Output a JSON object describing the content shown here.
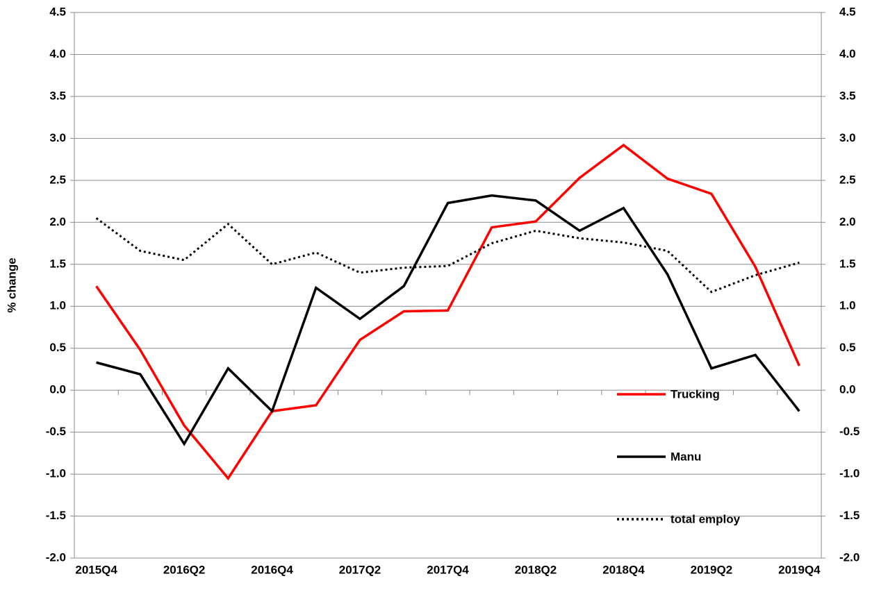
{
  "chart_data": {
    "type": "line",
    "y_label": "% change",
    "categories": [
      "2015Q4",
      null,
      "2016Q2",
      null,
      "2016Q4",
      null,
      "2017Q2",
      null,
      "2017Q4",
      null,
      "2018Q2",
      null,
      "2018Q4",
      null,
      "2019Q2",
      null,
      "2019Q4"
    ],
    "series": [
      {
        "name": "Trucking",
        "color": "#ff0000",
        "style": "solid",
        "values": [
          1.24,
          0.48,
          -0.42,
          -1.05,
          -0.25,
          -0.18,
          0.6,
          0.94,
          0.95,
          1.94,
          2.01,
          2.53,
          2.92,
          2.52,
          2.34,
          1.47,
          0.29
        ]
      },
      {
        "name": "Manu",
        "color": "#000000",
        "style": "solid",
        "values": [
          0.33,
          0.19,
          -0.64,
          0.26,
          -0.25,
          1.22,
          0.85,
          1.24,
          2.23,
          2.32,
          2.26,
          1.9,
          2.17,
          1.38,
          0.26,
          0.42,
          -0.25
        ]
      },
      {
        "name": "total employ",
        "color": "#000000",
        "style": "dotted",
        "values": [
          2.05,
          1.66,
          1.55,
          1.98,
          1.5,
          1.64,
          1.4,
          1.46,
          1.48,
          1.75,
          1.9,
          1.81,
          1.76,
          1.66,
          1.17,
          1.37,
          1.52
        ]
      }
    ],
    "ylim": [
      -2,
      4.5
    ],
    "yticks": [
      {
        "value": -2,
        "label": "-2.0"
      },
      -1.5,
      {
        "value": -1,
        "label": "-1.0"
      },
      -0.5,
      {
        "value": 0,
        "label": "0.0"
      },
      0.5,
      {
        "value": 1,
        "label": "1.0"
      },
      1.5,
      {
        "value": 2,
        "label": "2.0"
      },
      2.5,
      {
        "value": 3,
        "label": "3.0"
      },
      3.5,
      {
        "value": 4,
        "label": "4.0"
      },
      4.5
    ],
    "y2lim": [
      -2,
      4.5
    ],
    "y2ticks": [
      {
        "value": -2,
        "label": "-2.0"
      },
      -1.5,
      {
        "value": -1,
        "label": "-1.0"
      },
      -0.5,
      {
        "value": 0,
        "label": "0.0"
      },
      0.5,
      {
        "value": 1,
        "label": "1.0"
      },
      1.5,
      {
        "value": 2,
        "label": "2.0"
      },
      2.5,
      {
        "value": 3,
        "label": "3.0"
      },
      3.5,
      {
        "value": 4,
        "label": "4.0"
      },
      4.5
    ],
    "grid": true,
    "legend": "lower right"
  }
}
